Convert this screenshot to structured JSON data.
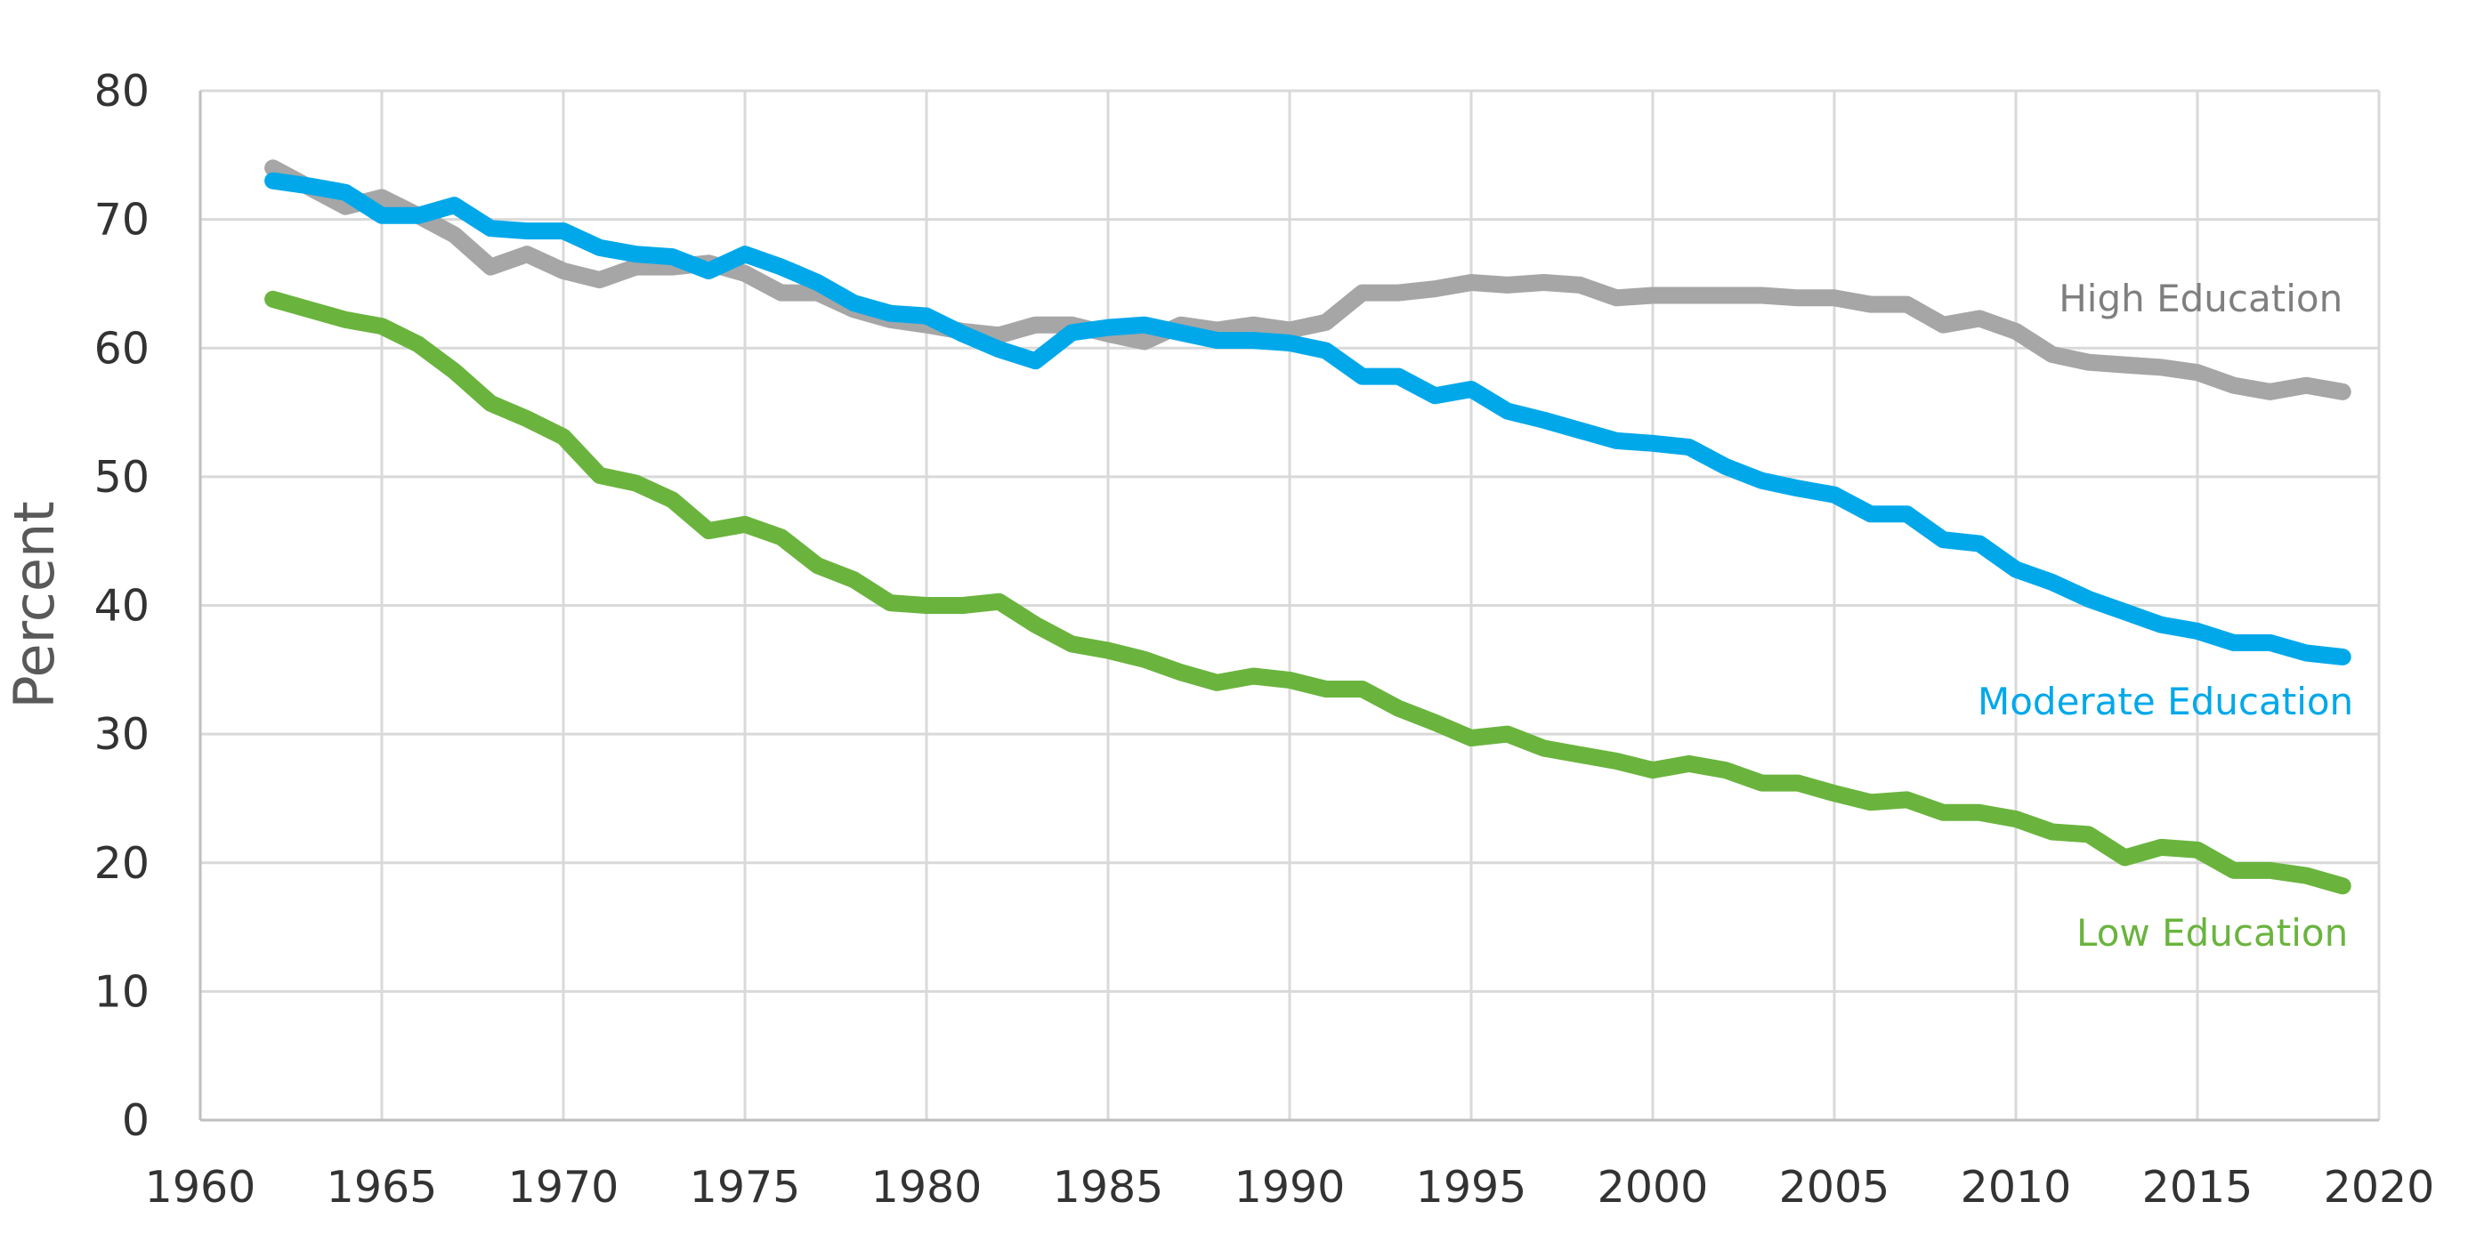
{
  "chart_data": {
    "type": "line",
    "title": "",
    "xlabel": "",
    "ylabel": "Percent",
    "xlim": [
      1960,
      2020
    ],
    "ylim": [
      0,
      80
    ],
    "x_ticks": [
      "1960",
      "1965",
      "1970",
      "1975",
      "1980",
      "1985",
      "1990",
      "1995",
      "2000",
      "2005",
      "2010",
      "2015",
      "2020"
    ],
    "y_ticks": [
      "0",
      "10",
      "20",
      "30",
      "40",
      "50",
      "60",
      "70",
      "80"
    ],
    "grid": true,
    "legend": "none (series labelled directly at line ends)",
    "x": [
      1962,
      1963,
      1964,
      1965,
      1966,
      1967,
      1968,
      1969,
      1970,
      1971,
      1972,
      1973,
      1974,
      1975,
      1976,
      1977,
      1978,
      1979,
      1980,
      1981,
      1982,
      1983,
      1984,
      1985,
      1986,
      1987,
      1988,
      1989,
      1990,
      1991,
      1992,
      1993,
      1994,
      1995,
      1996,
      1997,
      1998,
      1999,
      2000,
      2001,
      2002,
      2003,
      2004,
      2005,
      2006,
      2007,
      2008,
      2009,
      2010,
      2011,
      2012,
      2013,
      2014,
      2015,
      2016,
      2017,
      2018,
      2019
    ],
    "series": [
      {
        "name": "High Education",
        "color": "#a6a6a6",
        "values": [
          74,
          72.5,
          71,
          71.7,
          70.3,
          68.8,
          66.3,
          67.3,
          66,
          65.3,
          66.3,
          66.3,
          66.6,
          65.8,
          64.3,
          64.3,
          63,
          62.2,
          61.8,
          61.3,
          61,
          61.8,
          61.8,
          61.1,
          60.5,
          61.8,
          61.4,
          61.8,
          61.4,
          62,
          64.3,
          64.3,
          64.6,
          65.1,
          64.9,
          65.1,
          64.9,
          63.9,
          64.1,
          64.1,
          64.1,
          64.1,
          63.9,
          63.9,
          63.4,
          63.4,
          61.8,
          62.3,
          61.3,
          59.5,
          58.9,
          58.7,
          58.5,
          58.1,
          57.1,
          56.6,
          57.1,
          56.6
        ]
      },
      {
        "name": "Moderate Education",
        "color": "#00a8ea",
        "values": [
          73,
          72.6,
          72.1,
          70.3,
          70.3,
          71.1,
          69.3,
          69.1,
          69.1,
          67.8,
          67.3,
          67.1,
          66,
          67.3,
          66.3,
          65.1,
          63.5,
          62.7,
          62.5,
          61.1,
          59.9,
          59,
          61.2,
          61.6,
          61.8,
          61.2,
          60.6,
          60.6,
          60.4,
          59.8,
          57.8,
          57.8,
          56.3,
          56.8,
          55.1,
          54.4,
          53.6,
          52.8,
          52.6,
          52.3,
          50.8,
          49.7,
          49.1,
          48.6,
          47.1,
          47.1,
          45.1,
          44.8,
          42.8,
          41.8,
          40.5,
          39.5,
          38.5,
          38,
          37.1,
          37.1,
          36.3,
          36
        ]
      },
      {
        "name": "Low Education",
        "color": "#6ab43e",
        "values": [
          63.8,
          63,
          62.2,
          61.7,
          60.3,
          58.2,
          55.7,
          54.5,
          53.1,
          50.1,
          49.5,
          48.2,
          45.8,
          46.3,
          45.3,
          43.1,
          42,
          40.2,
          40,
          40,
          40.3,
          38.5,
          37,
          36.5,
          35.8,
          34.8,
          34,
          34.5,
          34.2,
          33.5,
          33.5,
          32,
          30.9,
          29.7,
          30,
          28.9,
          28.4,
          27.9,
          27.2,
          27.7,
          27.2,
          26.2,
          26.2,
          25.4,
          24.7,
          24.9,
          23.9,
          23.9,
          23.4,
          22.4,
          22.2,
          20.4,
          21.2,
          21,
          19.4,
          19.4,
          19,
          18.2
        ]
      }
    ]
  }
}
